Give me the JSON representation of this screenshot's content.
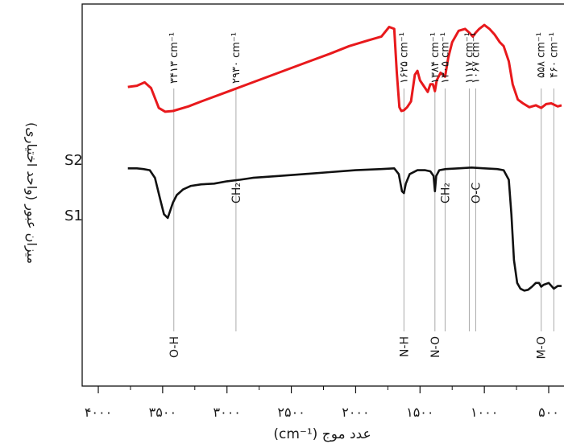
{
  "chart_data": {
    "type": "line",
    "title": "",
    "xlabel": "(cm⁻¹) عدد موج",
    "ylabel": "میزان عبور (واحد اختیاری)",
    "xlim": [
      4000,
      400
    ],
    "x_ticks": [
      4000,
      3500,
      3000,
      2500,
      2000,
      1500,
      1000,
      500
    ],
    "x_tick_labels": [
      "۴۰۰۰",
      "۳۵۰۰",
      "۳۰۰۰",
      "۲۵۰۰",
      "۲۰۰۰",
      "۱۵۰۰",
      "۱۰۰۰",
      "۵۰۰"
    ],
    "y_ticks_shown": false,
    "colors": {
      "S2": "#e8191c",
      "S1": "#111111",
      "guide": "#aaaaaa"
    },
    "series": [
      {
        "name": "S2",
        "points": [
          [
            3770,
            0.783
          ],
          [
            3700,
            0.786
          ],
          [
            3640,
            0.795
          ],
          [
            3590,
            0.78
          ],
          [
            3530,
            0.728
          ],
          [
            3480,
            0.718
          ],
          [
            3420,
            0.72
          ],
          [
            3300,
            0.732
          ],
          [
            3200,
            0.745
          ],
          [
            3000,
            0.77
          ],
          [
            2800,
            0.795
          ],
          [
            2600,
            0.82
          ],
          [
            2400,
            0.845
          ],
          [
            2200,
            0.87
          ],
          [
            2050,
            0.89
          ],
          [
            1900,
            0.905
          ],
          [
            1800,
            0.915
          ],
          [
            1740,
            0.94
          ],
          [
            1700,
            0.935
          ],
          [
            1680,
            0.82
          ],
          [
            1660,
            0.73
          ],
          [
            1645,
            0.72
          ],
          [
            1625,
            0.722
          ],
          [
            1600,
            0.73
          ],
          [
            1570,
            0.745
          ],
          [
            1540,
            0.815
          ],
          [
            1520,
            0.825
          ],
          [
            1500,
            0.8
          ],
          [
            1470,
            0.785
          ],
          [
            1440,
            0.77
          ],
          [
            1420,
            0.79
          ],
          [
            1400,
            0.79
          ],
          [
            1384,
            0.772
          ],
          [
            1370,
            0.8
          ],
          [
            1340,
            0.82
          ],
          [
            1305,
            0.81
          ],
          [
            1280,
            0.86
          ],
          [
            1250,
            0.9
          ],
          [
            1200,
            0.93
          ],
          [
            1150,
            0.935
          ],
          [
            1117,
            0.925
          ],
          [
            1090,
            0.915
          ],
          [
            1067,
            0.925
          ],
          [
            1040,
            0.935
          ],
          [
            1000,
            0.945
          ],
          [
            960,
            0.935
          ],
          [
            920,
            0.92
          ],
          [
            880,
            0.9
          ],
          [
            850,
            0.89
          ],
          [
            810,
            0.85
          ],
          [
            780,
            0.79
          ],
          [
            740,
            0.75
          ],
          [
            700,
            0.74
          ],
          [
            650,
            0.73
          ],
          [
            600,
            0.735
          ],
          [
            558,
            0.728
          ],
          [
            520,
            0.738
          ],
          [
            480,
            0.74
          ],
          [
            430,
            0.732
          ],
          [
            400,
            0.735
          ]
        ]
      },
      {
        "name": "S1",
        "points": [
          [
            3770,
            0.57
          ],
          [
            3700,
            0.57
          ],
          [
            3650,
            0.568
          ],
          [
            3600,
            0.565
          ],
          [
            3560,
            0.545
          ],
          [
            3520,
            0.49
          ],
          [
            3490,
            0.45
          ],
          [
            3460,
            0.44
          ],
          [
            3420,
            0.48
          ],
          [
            3390,
            0.5
          ],
          [
            3340,
            0.515
          ],
          [
            3280,
            0.524
          ],
          [
            3200,
            0.528
          ],
          [
            3100,
            0.53
          ],
          [
            3000,
            0.536
          ],
          [
            2900,
            0.54
          ],
          [
            2800,
            0.545
          ],
          [
            2600,
            0.55
          ],
          [
            2400,
            0.555
          ],
          [
            2200,
            0.56
          ],
          [
            2000,
            0.565
          ],
          [
            1800,
            0.568
          ],
          [
            1700,
            0.57
          ],
          [
            1665,
            0.555
          ],
          [
            1640,
            0.51
          ],
          [
            1625,
            0.505
          ],
          [
            1610,
            0.53
          ],
          [
            1580,
            0.555
          ],
          [
            1520,
            0.565
          ],
          [
            1460,
            0.565
          ],
          [
            1420,
            0.562
          ],
          [
            1395,
            0.55
          ],
          [
            1384,
            0.51
          ],
          [
            1374,
            0.55
          ],
          [
            1350,
            0.565
          ],
          [
            1300,
            0.568
          ],
          [
            1200,
            0.57
          ],
          [
            1100,
            0.572
          ],
          [
            1000,
            0.57
          ],
          [
            900,
            0.568
          ],
          [
            850,
            0.565
          ],
          [
            810,
            0.54
          ],
          [
            790,
            0.45
          ],
          [
            770,
            0.33
          ],
          [
            745,
            0.27
          ],
          [
            720,
            0.255
          ],
          [
            690,
            0.25
          ],
          [
            660,
            0.252
          ],
          [
            630,
            0.26
          ],
          [
            600,
            0.27
          ],
          [
            575,
            0.27
          ],
          [
            558,
            0.26
          ],
          [
            540,
            0.265
          ],
          [
            500,
            0.27
          ],
          [
            460,
            0.255
          ],
          [
            430,
            0.262
          ],
          [
            400,
            0.262
          ]
        ]
      }
    ],
    "series_labels": [
      "S2",
      "S1"
    ],
    "peak_annotations": [
      {
        "x": 3413,
        "top": "۳۴۱۳ cm⁻¹",
        "bottom": "O-H"
      },
      {
        "x": 2930,
        "top": "۲۹۳۰ cm⁻¹",
        "bottom": ""
      },
      {
        "x": 1625,
        "top": "۱۶۲۵ cm⁻¹",
        "bottom": "N-H"
      },
      {
        "x": 1384,
        "top": "۱۳۸۴ cm⁻¹",
        "bottom": "N-O"
      },
      {
        "x": 1305,
        "top": "۱۳۰۵ cm⁻¹",
        "bottom": ""
      },
      {
        "x": 1117,
        "top": "۱۱۱۷ cm⁻¹",
        "bottom": ""
      },
      {
        "x": 1067,
        "top": "۱۰۶۷ cm⁻¹",
        "bottom": ""
      },
      {
        "x": 558,
        "top": "۵۵۸ cm⁻¹",
        "bottom": "M-O"
      },
      {
        "x": 460,
        "top": "۴۶۰ cm⁻¹",
        "bottom": ""
      }
    ],
    "inline_annotations": [
      {
        "x": 2930,
        "label": "CH₂"
      },
      {
        "x": 1305,
        "label": "CH₂"
      },
      {
        "x": 1067,
        "label": "O-C"
      }
    ]
  }
}
